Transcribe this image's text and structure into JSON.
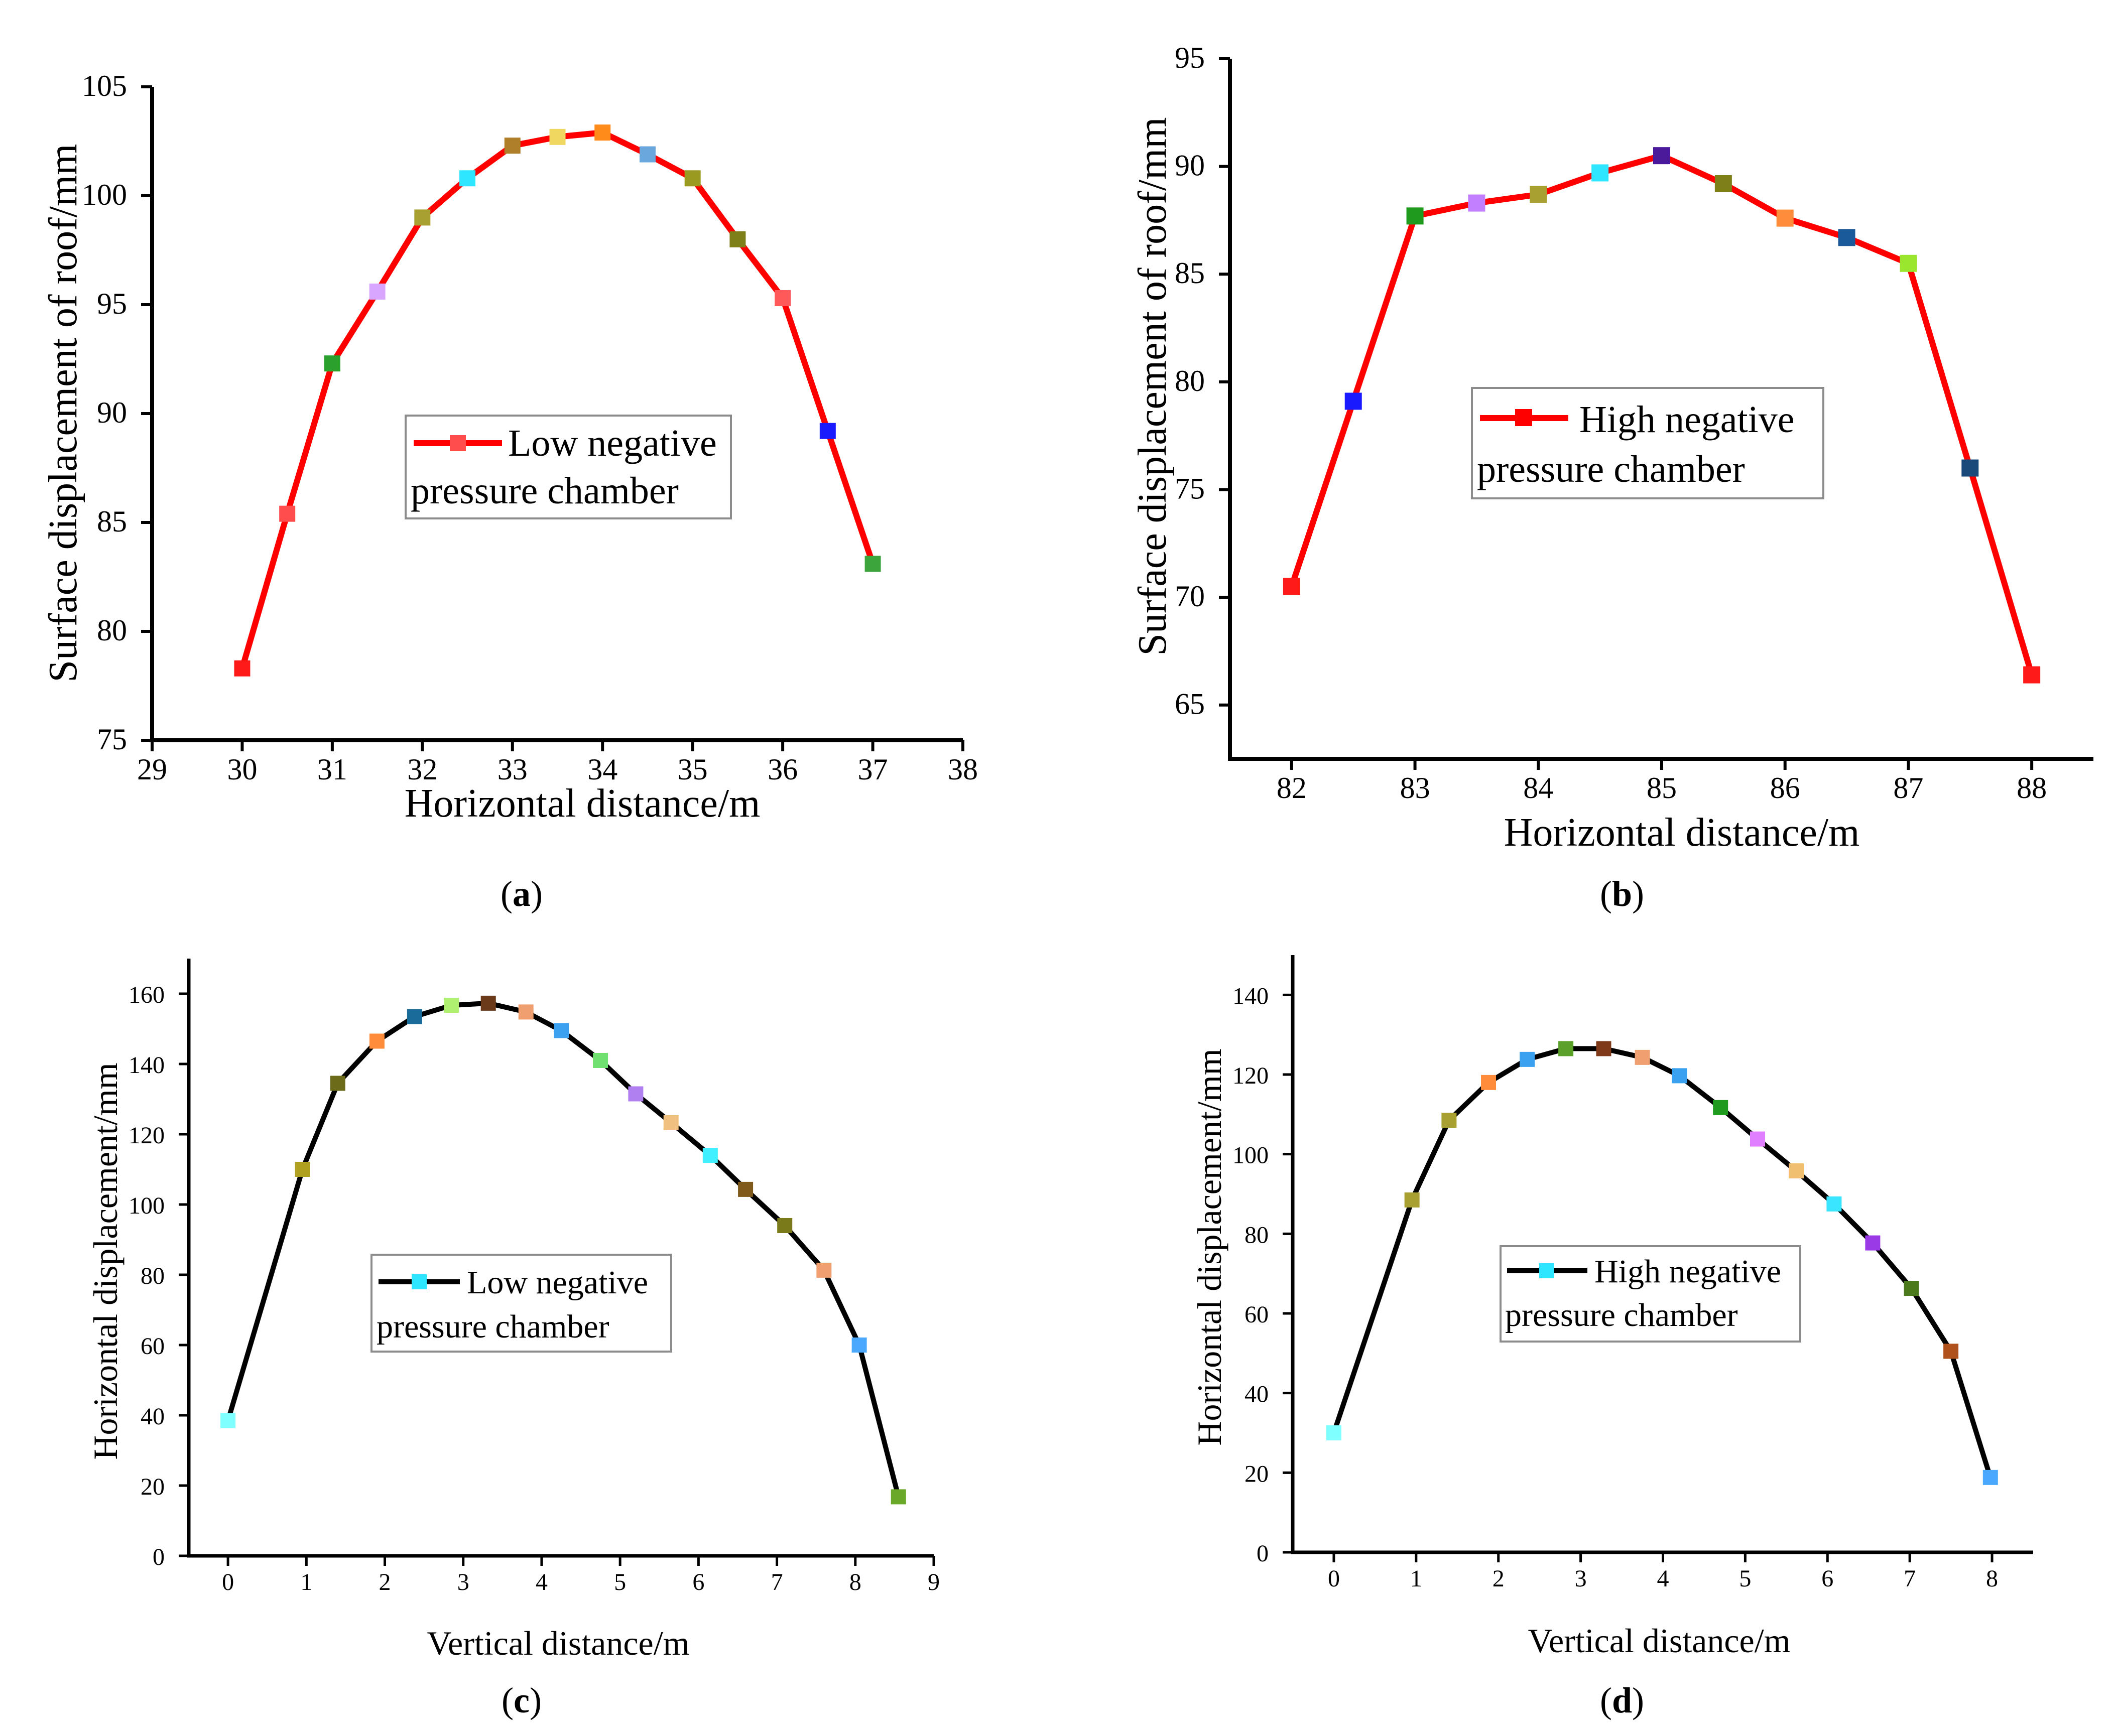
{
  "chart_data": [
    {
      "type": "line",
      "panel": "(a)",
      "panel_letter": "a",
      "xlabel": "Horizontal distance/m",
      "ylabel": "Surface displacement of roof/mm",
      "xlim": [
        29,
        38
      ],
      "ylim": [
        75,
        105
      ],
      "xticks": [
        29,
        30,
        31,
        32,
        33,
        34,
        35,
        36,
        37,
        38
      ],
      "yticks": [
        75,
        80,
        85,
        90,
        95,
        100,
        105
      ],
      "line_color": "#ff0000",
      "legend": {
        "line1": "Low negative",
        "line2": "pressure chamber",
        "marker_color": "#ff4d4d",
        "placement": "center"
      },
      "series": [
        {
          "name": "Low negative pressure chamber",
          "x": [
            30,
            30.5,
            31,
            31.5,
            32,
            32.5,
            33,
            33.5,
            34,
            34.5,
            35,
            35.5,
            36,
            36.5,
            37
          ],
          "y": [
            78.3,
            85.4,
            92.3,
            95.6,
            99.0,
            100.8,
            102.3,
            102.7,
            102.9,
            101.9,
            100.8,
            98.0,
            95.3,
            89.2,
            83.1
          ],
          "marker_colors": [
            "#ff1a1a",
            "#ff4d4d",
            "#2ca02c",
            "#d9a6ff",
            "#a8a030",
            "#2ee6ff",
            "#b07f2a",
            "#f0d860",
            "#ff8c1a",
            "#6aa7dc",
            "#9a9a20",
            "#7f7f1a",
            "#ff5959",
            "#1a1aff",
            "#3ca63c"
          ]
        }
      ]
    },
    {
      "type": "line",
      "panel": "(b)",
      "panel_letter": "b",
      "xlabel": "Horizontal distance/m",
      "ylabel": "Surface displacement of roof/mm",
      "xlim": [
        81.5,
        88.5
      ],
      "ylim": [
        62.5,
        95
      ],
      "xticks": [
        82,
        83,
        84,
        85,
        86,
        87,
        88
      ],
      "yticks": [
        65,
        70,
        75,
        80,
        85,
        90,
        95
      ],
      "line_color": "#ff0000",
      "legend": {
        "line1": "High negative",
        "line2": "pressure chamber",
        "marker_color": "#ff0000",
        "placement": "center"
      },
      "series": [
        {
          "name": "High negative pressure chamber",
          "x": [
            82,
            82.5,
            83,
            83.5,
            84,
            84.5,
            85,
            85.5,
            86,
            86.5,
            87,
            87.5,
            88
          ],
          "y": [
            70.5,
            79.1,
            87.7,
            88.3,
            88.7,
            89.7,
            90.5,
            89.2,
            87.6,
            86.7,
            85.5,
            76.0,
            66.4
          ],
          "marker_colors": [
            "#ff1a1a",
            "#1a1aff",
            "#1f9a1f",
            "#c27fff",
            "#a8a030",
            "#2ee6ff",
            "#4b1a9a",
            "#7f7f1a",
            "#ff8c3a",
            "#1a5a9a",
            "#9ae62e",
            "#1a4a7a",
            "#ff1a1a"
          ]
        }
      ]
    },
    {
      "type": "line",
      "panel": "(c)",
      "panel_letter": "c",
      "xlabel": "Vertical distance/m",
      "ylabel": "Horizontal displacement/mm",
      "xlim": [
        -0.5,
        9
      ],
      "ylim": [
        0,
        170
      ],
      "xticks": [
        0,
        1,
        2,
        3,
        4,
        5,
        6,
        7,
        8,
        9
      ],
      "yticks": [
        0,
        20,
        40,
        60,
        80,
        100,
        120,
        140,
        160
      ],
      "line_color": "#000000",
      "legend": {
        "line1": "Low negative",
        "line2": "pressure chamber",
        "marker_color": "#2ee6ff",
        "placement": "center-left"
      },
      "series": [
        {
          "name": "Low negative pressure chamber",
          "x": [
            0,
            0.95,
            1.4,
            1.9,
            2.38,
            2.85,
            3.32,
            3.8,
            4.25,
            4.75,
            5.2,
            5.65,
            6.15,
            6.6,
            7.1,
            7.6,
            8.05,
            8.55
          ],
          "y": [
            38.5,
            110.0,
            134.5,
            146.5,
            153.5,
            156.7,
            157.3,
            154.8,
            149.5,
            141.0,
            131.5,
            123.3,
            114.0,
            104.3,
            94.0,
            81.3,
            60.0,
            16.8
          ],
          "marker_colors": [
            "#7fffff",
            "#b0a020",
            "#6b6b1a",
            "#ff8c3a",
            "#1a6a9a",
            "#b0f070",
            "#6b3a1a",
            "#f0a070",
            "#3aa0f0",
            "#70e070",
            "#b07ff0",
            "#f0c080",
            "#40f0ff",
            "#7f5a1a",
            "#7a7a1a",
            "#f0a070",
            "#4aa8ff",
            "#6aa82a"
          ]
        }
      ]
    },
    {
      "type": "line",
      "panel": "(d)",
      "panel_letter": "d",
      "xlabel": "Vertical distance/m",
      "ylabel": "Horizontal displacement/mm",
      "xlim": [
        -0.5,
        8.5
      ],
      "ylim": [
        0,
        150
      ],
      "xticks": [
        0,
        1,
        2,
        3,
        4,
        5,
        6,
        7,
        8
      ],
      "yticks": [
        0,
        20,
        40,
        60,
        80,
        100,
        120,
        140
      ],
      "line_color": "#000000",
      "legend": {
        "line1": "High negative",
        "line2": "pressure chamber",
        "marker_color": "#2ee6ff",
        "placement": "center"
      },
      "series": [
        {
          "name": "High negative pressure chamber",
          "x": [
            0,
            0.95,
            1.4,
            1.88,
            2.35,
            2.82,
            3.28,
            3.75,
            4.2,
            4.7,
            5.15,
            5.62,
            6.08,
            6.55,
            7.02,
            7.5,
            7.98
          ],
          "y": [
            30.0,
            88.5,
            108.5,
            118.0,
            123.8,
            126.5,
            126.5,
            124.3,
            119.7,
            111.7,
            103.8,
            95.8,
            87.5,
            77.7,
            66.3,
            50.5,
            18.8
          ],
          "marker_colors": [
            "#7fffff",
            "#a8a030",
            "#a8a030",
            "#ff8c3a",
            "#3aa0f0",
            "#5aa02a",
            "#7f3a1a",
            "#f0a070",
            "#3aa0f0",
            "#1f9a1f",
            "#e07fff",
            "#f0c070",
            "#3ae6ff",
            "#9a3ae6",
            "#4a7a1a",
            "#b0501a",
            "#4aa8ff"
          ]
        }
      ]
    }
  ]
}
